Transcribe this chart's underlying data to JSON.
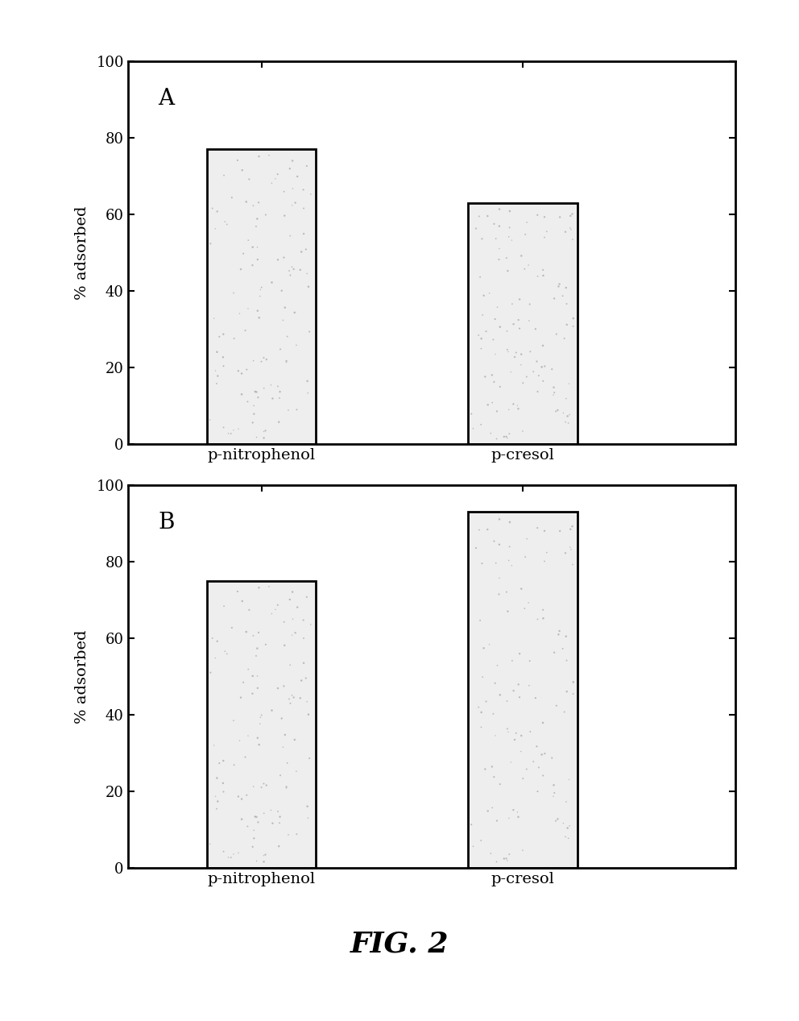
{
  "subplot_A": {
    "categories": [
      "p-nitrophenol",
      "p-cresol"
    ],
    "values": [
      77,
      63
    ],
    "label": "A"
  },
  "subplot_B": {
    "categories": [
      "p-nitrophenol",
      "p-cresol"
    ],
    "values": [
      75,
      93
    ],
    "label": "B"
  },
  "ylabel": "% adsorbed",
  "ylim": [
    0,
    100
  ],
  "yticks": [
    0,
    20,
    40,
    60,
    80,
    100
  ],
  "bar_color": "#eeeeee",
  "bar_edgecolor": "#000000",
  "bar_width": 0.18,
  "x_positions": [
    0.22,
    0.65
  ],
  "xlim": [
    0,
    1
  ],
  "fig_caption": "FIG. 2",
  "background_color": "#ffffff",
  "bar_linewidth": 2.0,
  "spine_linewidth": 2.0,
  "ylabel_fontsize": 14,
  "tick_labelsize": 13,
  "xlabel_fontsize": 14,
  "label_fontsize": 20,
  "caption_fontsize": 26
}
